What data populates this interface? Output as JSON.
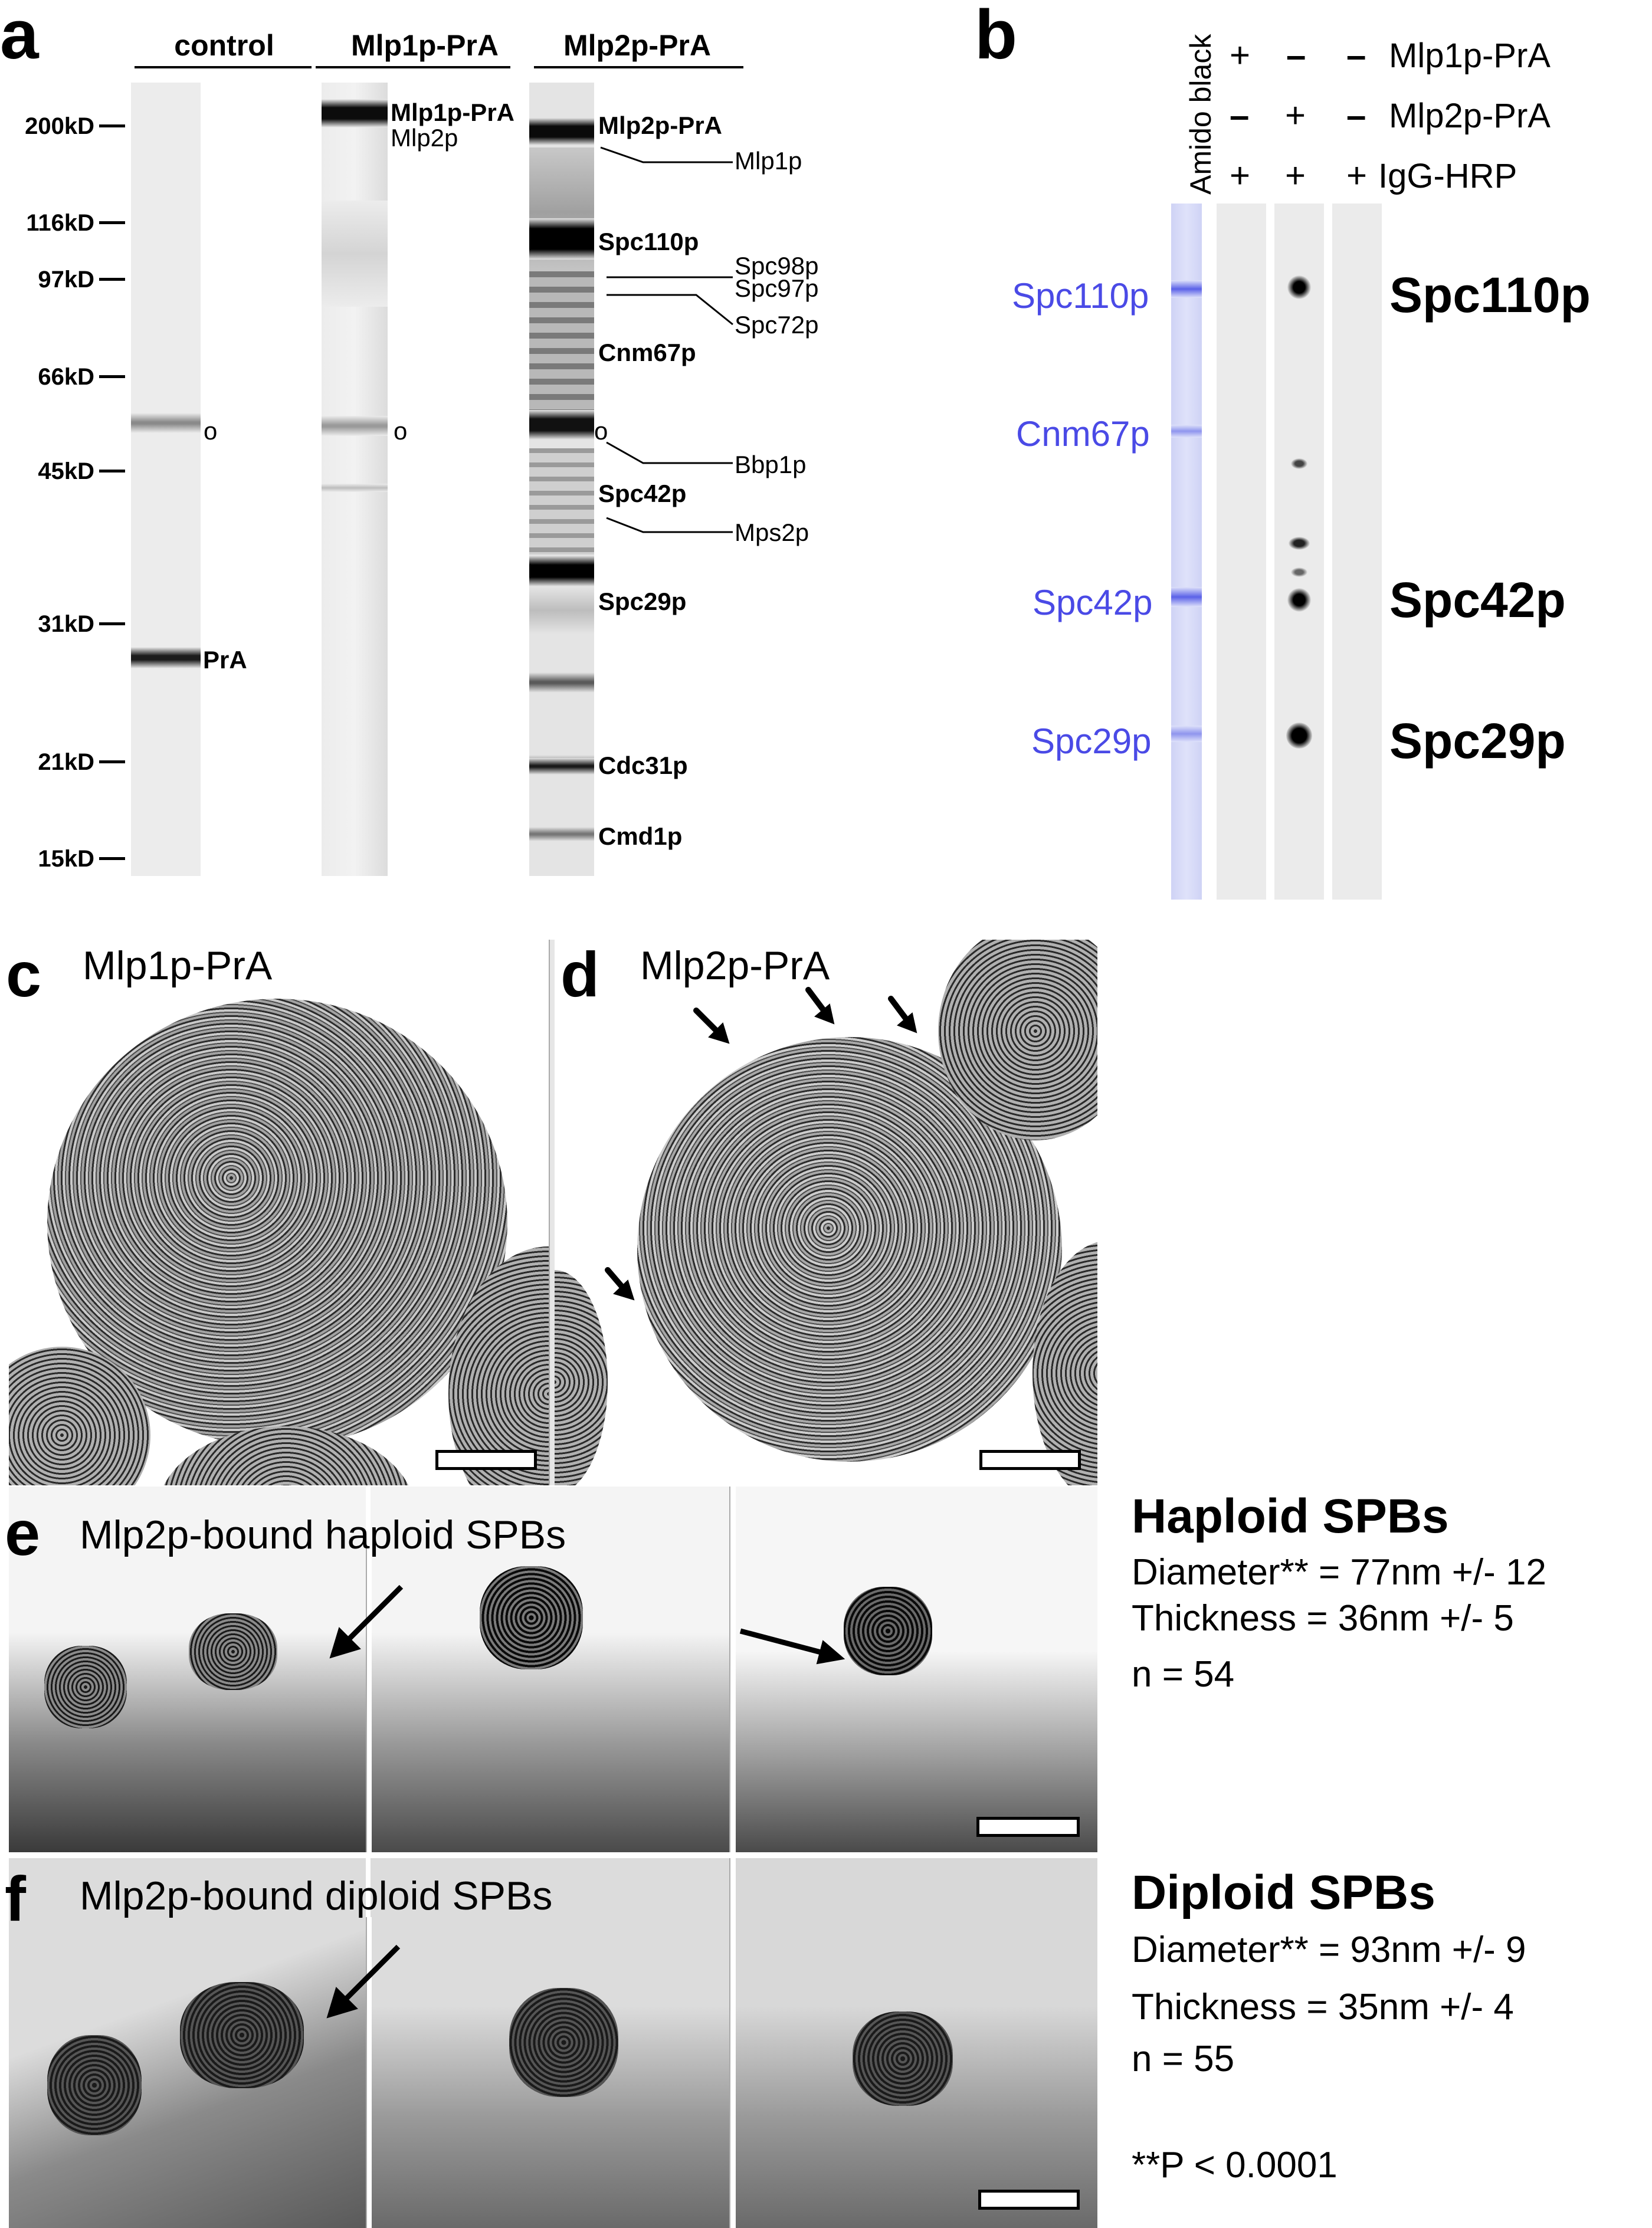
{
  "panel_a": {
    "letter": "a",
    "lane_headers": [
      "control",
      "Mlp1p-PrA",
      "Mlp2p-PrA"
    ],
    "markers": [
      "200kD",
      "116kD",
      "97kD",
      "66kD",
      "45kD",
      "31kD",
      "21kD",
      "15kD"
    ],
    "control_labels": {
      "band": "PrA",
      "circle": "o"
    },
    "mlp1_labels": {
      "top_bold": "Mlp1p-PrA",
      "top_sub": "Mlp2p",
      "circle": "o"
    },
    "mlp2_bold_labels": [
      "Mlp2p-PrA",
      "Spc110p",
      "Cnm67p",
      "Spc42p",
      "Spc29p",
      "Cdc31p",
      "Cmd1p"
    ],
    "mlp2_side_labels": [
      "Mlp1p",
      "Spc98p",
      "Spc97p",
      "Spc72p",
      "Bbp1p",
      "Mps2p"
    ],
    "mlp2_circle": "o"
  },
  "panel_b": {
    "letter": "b",
    "stain_label": "Amido black",
    "rows": [
      {
        "signs": [
          "+",
          "–",
          "–"
        ],
        "label": "Mlp1p-PrA"
      },
      {
        "signs": [
          "–",
          "+",
          "–"
        ],
        "label": "Mlp2p-PrA"
      },
      {
        "signs": [
          "+",
          "+",
          "+"
        ],
        "label": "IgG-HRP"
      }
    ],
    "left_labels": [
      "Spc110p",
      "Cnm67p",
      "Spc42p",
      "Spc29p"
    ],
    "right_labels": [
      "Spc110p",
      "Spc42p",
      "Spc29p"
    ],
    "left_label_color": "#4a4ae6"
  },
  "panel_c": {
    "letter": "c",
    "title": "Mlp1p-PrA"
  },
  "panel_d": {
    "letter": "d",
    "title": "Mlp2p-PrA"
  },
  "panel_e": {
    "letter": "e",
    "title": "Mlp2p-bound haploid SPBs",
    "stats_title": "Haploid SPBs",
    "stats": [
      "Diameter** = 77nm +/- 12",
      "Thickness = 36nm +/- 5",
      "n = 54"
    ]
  },
  "panel_f": {
    "letter": "f",
    "title": "Mlp2p-bound diploid SPBs",
    "stats_title": "Diploid SPBs",
    "stats": [
      "Diameter** = 93nm +/- 9",
      "Thickness = 35nm +/- 4",
      "n = 55"
    ],
    "footnote": "**P < 0.0001"
  }
}
